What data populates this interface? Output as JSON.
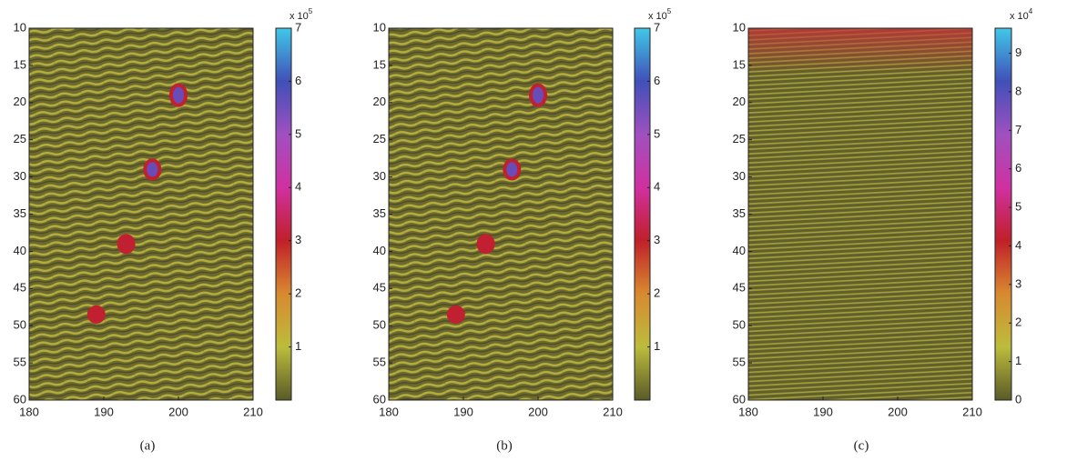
{
  "chart_data": [
    {
      "type": "heatmap",
      "caption": "(a)",
      "xlim": [
        180,
        210
      ],
      "xticks": [
        180,
        190,
        200,
        210
      ],
      "ylim": [
        60,
        10
      ],
      "yticks": [
        10,
        15,
        20,
        25,
        30,
        35,
        40,
        45,
        50,
        55,
        60
      ],
      "colorbar": {
        "lim": [
          0,
          7
        ],
        "ticks": [
          1,
          2,
          3,
          4,
          5,
          6,
          7
        ],
        "exponent_base": "x 10",
        "exponent_power": "5",
        "colormap": [
          "#5a5a28",
          "#bcbc3c",
          "#d88a30",
          "#c02028",
          "#d030a0",
          "#a050c0",
          "#4050b8",
          "#40c8e8"
        ]
      },
      "points": {
        "x": [
          200,
          196.5,
          193,
          189
        ],
        "y": [
          19,
          29,
          39,
          48.5
        ]
      }
    },
    {
      "type": "heatmap",
      "caption": "(b)",
      "xlim": [
        180,
        210
      ],
      "xticks": [
        180,
        190,
        200,
        210
      ],
      "ylim": [
        60,
        10
      ],
      "yticks": [
        10,
        15,
        20,
        25,
        30,
        35,
        40,
        45,
        50,
        55,
        60
      ],
      "colorbar": {
        "lim": [
          0,
          7
        ],
        "ticks": [
          1,
          2,
          3,
          4,
          5,
          6,
          7
        ],
        "exponent_base": "x 10",
        "exponent_power": "5",
        "colormap": [
          "#5a5a28",
          "#bcbc3c",
          "#d88a30",
          "#c02028",
          "#d030a0",
          "#a050c0",
          "#4050b8",
          "#40c8e8"
        ]
      },
      "points": {
        "x": [
          200,
          196.5,
          193,
          189
        ],
        "y": [
          19,
          29,
          39,
          48.5
        ]
      }
    },
    {
      "type": "heatmap",
      "caption": "(c)",
      "xlim": [
        180,
        210
      ],
      "xticks": [
        180,
        190,
        200,
        210
      ],
      "ylim": [
        60,
        10
      ],
      "yticks": [
        10,
        15,
        20,
        25,
        30,
        35,
        40,
        45,
        50,
        55,
        60
      ],
      "colorbar": {
        "lim": [
          0,
          9.65
        ],
        "ticks": [
          0,
          1,
          2,
          3,
          4,
          5,
          6,
          7,
          8,
          9
        ],
        "exponent_base": "x 10",
        "exponent_power": "4",
        "colormap": [
          "#5a5a28",
          "#bcbc3c",
          "#d88a30",
          "#c02028",
          "#d030a0",
          "#a050c0",
          "#4050b8",
          "#40c8e8"
        ]
      },
      "points": {
        "x": [],
        "y": []
      }
    }
  ]
}
